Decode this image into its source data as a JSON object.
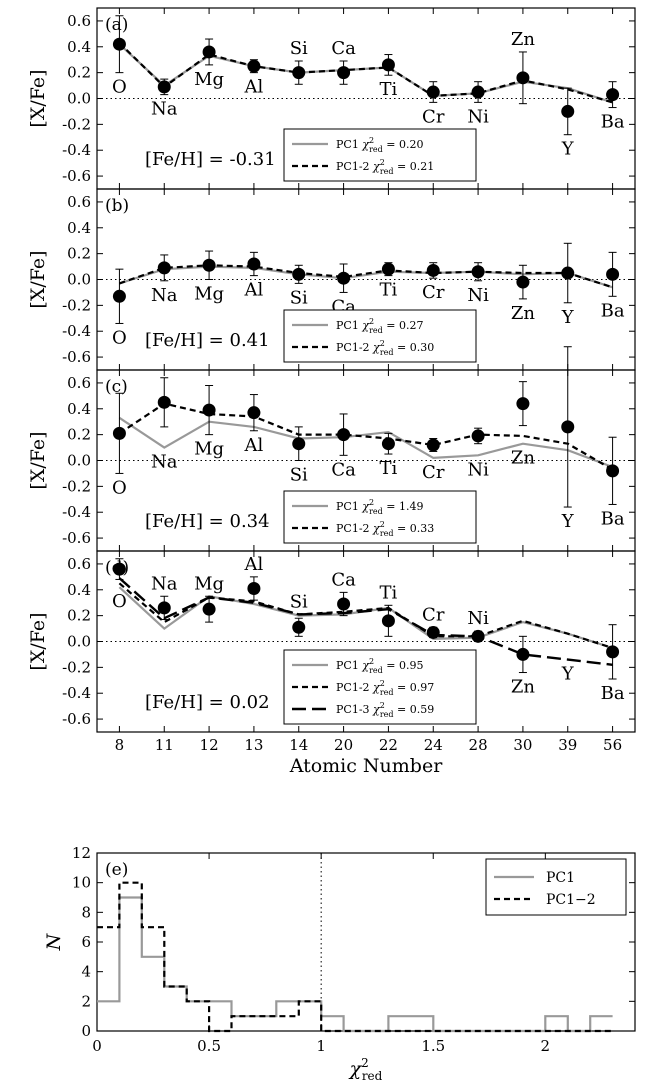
{
  "figure_description_axis": {
    "ylabel": "[X/Fe]",
    "xlabel": "Atomic Number",
    "zero_line": "dotted"
  },
  "chart_data": [
    {
      "type": "line",
      "panel_label": "(a)",
      "feh_label": "[Fe/H] = -0.31",
      "ylim": [
        -0.7,
        0.7
      ],
      "yticks": [
        "0.6",
        "0.4",
        "0.2",
        "0.0",
        "-0.2",
        "-0.4",
        "-0.6"
      ],
      "elements": [
        "O",
        "Na",
        "Mg",
        "Al",
        "Si",
        "Ca",
        "Ti",
        "Cr",
        "Ni",
        "Zn",
        "Y",
        "Ba"
      ],
      "label_side": [
        "below",
        "below",
        "below",
        "below",
        "above",
        "above",
        "below",
        "below",
        "below",
        "above",
        "below",
        "below"
      ],
      "observed": [
        0.42,
        0.09,
        0.36,
        0.25,
        0.2,
        0.2,
        0.26,
        0.05,
        0.05,
        0.16,
        -0.1,
        0.03
      ],
      "err": [
        0.22,
        0.06,
        0.1,
        0.05,
        0.09,
        0.09,
        0.08,
        0.08,
        0.08,
        0.2,
        0.18,
        0.1
      ],
      "series": [
        {
          "name": "PC1",
          "chi2": "0.20",
          "style": "solid-gray",
          "values": [
            0.42,
            0.1,
            0.33,
            0.25,
            0.2,
            0.22,
            0.24,
            0.02,
            0.04,
            0.13,
            0.08,
            -0.03
          ]
        },
        {
          "name": "PC1-2",
          "chi2": "0.21",
          "style": "dash-black",
          "values": [
            0.43,
            0.09,
            0.34,
            0.25,
            0.2,
            0.22,
            0.24,
            0.02,
            0.04,
            0.14,
            0.07,
            -0.03
          ]
        }
      ]
    },
    {
      "type": "line",
      "panel_label": "(b)",
      "feh_label": "[Fe/H] = 0.41",
      "ylim": [
        -0.7,
        0.7
      ],
      "yticks": [
        "0.6",
        "0.4",
        "0.2",
        "0.0",
        "-0.2",
        "-0.4",
        "-0.6"
      ],
      "elements": [
        "O",
        "Na",
        "Mg",
        "Al",
        "Si",
        "Ca",
        "Ti",
        "Cr",
        "Ni",
        "Zn",
        "Y",
        "Ba"
      ],
      "label_side": [
        "below",
        "below",
        "below",
        "below",
        "below",
        "below",
        "below",
        "below",
        "below",
        "below",
        "below",
        "below"
      ],
      "observed": [
        -0.13,
        0.09,
        0.11,
        0.12,
        0.04,
        0.01,
        0.08,
        0.07,
        0.06,
        -0.02,
        0.05,
        0.04
      ],
      "err": [
        0.21,
        0.1,
        0.11,
        0.09,
        0.07,
        0.11,
        0.05,
        0.06,
        0.07,
        0.13,
        0.23,
        0.17
      ],
      "series": [
        {
          "name": "PC1",
          "chi2": "0.27",
          "style": "solid-gray",
          "values": [
            -0.03,
            0.08,
            0.1,
            0.09,
            0.04,
            0.01,
            0.06,
            0.05,
            0.06,
            0.04,
            0.05,
            -0.06
          ]
        },
        {
          "name": "PC1-2",
          "chi2": "0.30",
          "style": "dash-black",
          "values": [
            -0.03,
            0.09,
            0.11,
            0.1,
            0.05,
            0.02,
            0.07,
            0.05,
            0.06,
            0.05,
            0.05,
            -0.06
          ]
        }
      ]
    },
    {
      "type": "line",
      "panel_label": "(c)",
      "feh_label": "[Fe/H] = 0.34",
      "ylim": [
        -0.7,
        0.7
      ],
      "yticks": [
        "0.6",
        "0.4",
        "0.2",
        "0.0",
        "-0.2",
        "-0.4",
        "-0.6"
      ],
      "elements": [
        "O",
        "Na",
        "Mg",
        "Al",
        "Si",
        "Ca",
        "Ti",
        "Cr",
        "Ni",
        "Zn",
        "Y",
        "Ba"
      ],
      "label_side": [
        "below",
        "below",
        "below",
        "below",
        "below",
        "below",
        "below",
        "below",
        "below",
        "below",
        "below",
        "below"
      ],
      "observed": [
        0.21,
        0.45,
        0.39,
        0.37,
        0.13,
        0.2,
        0.13,
        0.12,
        0.19,
        0.44,
        0.26,
        -0.08
      ],
      "err": [
        0.31,
        0.19,
        0.19,
        0.14,
        0.13,
        0.16,
        0.08,
        0.05,
        0.06,
        0.17,
        0.62,
        0.26
      ],
      "series": [
        {
          "name": "PC1",
          "chi2": "1.49",
          "style": "solid-gray",
          "values": [
            0.33,
            0.1,
            0.3,
            0.26,
            0.17,
            0.18,
            0.22,
            0.02,
            0.04,
            0.13,
            0.08,
            -0.05
          ]
        },
        {
          "name": "PC1-2",
          "chi2": "0.33",
          "style": "dash-black",
          "values": [
            0.21,
            0.44,
            0.36,
            0.34,
            0.2,
            0.2,
            0.17,
            0.12,
            0.2,
            0.19,
            0.13,
            -0.07
          ]
        }
      ]
    },
    {
      "type": "line",
      "panel_label": "(d)",
      "feh_label": "[Fe/H] = 0.02",
      "ylim": [
        -0.7,
        0.7
      ],
      "yticks": [
        "0.6",
        "0.4",
        "0.2",
        "0.0",
        "-0.2",
        "-0.4",
        "-0.6"
      ],
      "elements": [
        "O",
        "Na",
        "Mg",
        "Al",
        "Si",
        "Ca",
        "Ti",
        "Cr",
        "Ni",
        "Zn",
        "Y",
        "Ba"
      ],
      "label_side": [
        "below",
        "above",
        "above",
        "above",
        "above",
        "above",
        "above",
        "above",
        "above",
        "below",
        "below",
        "below"
      ],
      "xtick_labels": [
        "8",
        "11",
        "12",
        "13",
        "14",
        "20",
        "22",
        "24",
        "28",
        "30",
        "39",
        "56"
      ],
      "observed": [
        0.56,
        0.26,
        0.25,
        0.41,
        0.11,
        0.29,
        0.16,
        0.07,
        0.04,
        -0.1,
        null,
        -0.08
      ],
      "err": [
        0.08,
        0.09,
        0.1,
        0.09,
        0.07,
        0.09,
        0.12,
        0.04,
        0.04,
        0.14,
        null,
        0.21
      ],
      "series": [
        {
          "name": "PC1",
          "chi2": "0.95",
          "style": "solid-gray",
          "values": [
            0.42,
            0.1,
            0.35,
            0.29,
            0.2,
            0.21,
            0.26,
            0.02,
            0.03,
            0.15,
            0.06,
            -0.05
          ]
        },
        {
          "name": "PC1-2",
          "chi2": "0.97",
          "style": "dash-black",
          "values": [
            0.45,
            0.15,
            0.34,
            0.31,
            0.21,
            0.23,
            0.26,
            0.04,
            0.04,
            0.16,
            0.06,
            -0.05
          ]
        },
        {
          "name": "PC1-3",
          "chi2": "0.59",
          "style": "longdash-black",
          "values": [
            0.49,
            0.18,
            0.34,
            0.3,
            0.21,
            0.22,
            0.25,
            0.05,
            0.04,
            -0.1,
            -0.14,
            -0.18
          ]
        }
      ]
    },
    {
      "type": "histogram",
      "panel_label": "(e)",
      "xlabel": "χ²red",
      "ylabel": "N",
      "xlim": [
        0,
        2.4
      ],
      "ylim": [
        0,
        12
      ],
      "xticks": [
        "0",
        "0.5",
        "1",
        "1.5",
        "2"
      ],
      "yticks": [
        "0",
        "2",
        "4",
        "6",
        "8",
        "10",
        "12"
      ],
      "vline_x": 1.0,
      "bin_edges": [
        0.0,
        0.1,
        0.2,
        0.3,
        0.4,
        0.5,
        0.6,
        0.7,
        0.8,
        0.9,
        1.0,
        1.1,
        1.2,
        1.3,
        1.4,
        1.5,
        1.6,
        1.7,
        1.8,
        1.9,
        2.0,
        2.1,
        2.2,
        2.3
      ],
      "series": [
        {
          "name": "PC1",
          "style": "solid-gray",
          "counts": [
            2,
            9,
            5,
            3,
            2,
            2,
            1,
            1,
            2,
            2,
            1,
            0,
            0,
            1,
            1,
            0,
            0,
            0,
            0,
            0,
            1,
            0,
            1
          ]
        },
        {
          "name": "PC1−2",
          "style": "dash-black",
          "counts": [
            7,
            10,
            7,
            3,
            2,
            0,
            1,
            1,
            1,
            2,
            0,
            0,
            0,
            0,
            0,
            0,
            0,
            0,
            0,
            0,
            0,
            0,
            0
          ]
        }
      ]
    }
  ]
}
